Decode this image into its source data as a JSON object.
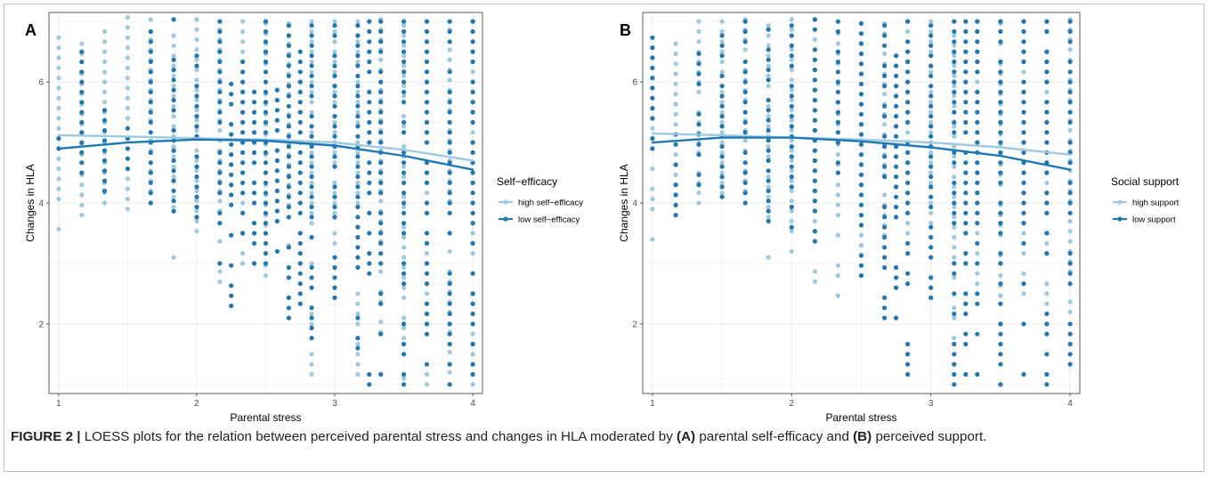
{
  "caption": {
    "label": "FIGURE 2 |",
    "text_1": " LOESS plots for the relation between perceived parental stress and changes in HLA moderated by ",
    "mark_a": "(A)",
    "text_2": " parental self-efficacy and ",
    "mark_b": "(B)",
    "text_3": " perceived support."
  },
  "colors": {
    "high": "#9ecae1",
    "low": "#1f78b4",
    "grid": "#ebebeb",
    "panel_border": "#333333"
  },
  "chart_data": [
    {
      "panel": "A",
      "type": "scatter",
      "xlabel": "Parental stress",
      "ylabel": "Changes in HLA",
      "xlim": [
        0.93,
        4.07
      ],
      "ylim": [
        0.85,
        7.15
      ],
      "x_ticks": [
        "1",
        "2",
        "3",
        "4"
      ],
      "y_ticks": [
        "2",
        "4",
        "6"
      ],
      "grid": true,
      "legend": {
        "title": "Self−efficacy",
        "position": "right"
      },
      "x_levels": [
        1,
        1.167,
        1.333,
        1.5,
        1.667,
        1.833,
        2,
        2.167,
        2.25,
        2.333,
        2.417,
        2.5,
        2.583,
        2.667,
        2.75,
        2.833,
        3,
        3.167,
        3.25,
        3.333,
        3.5,
        3.667,
        3.833,
        4
      ],
      "series": [
        {
          "name": "high self−efficacy",
          "color": "#9ecae1",
          "points_note_x_ranges": "columns of points at each x level",
          "columns": [
            {
              "x": 1,
              "ymin": 3.4,
              "ymax": 6.8
            },
            {
              "x": 1.167,
              "ymin": 3.8,
              "ymax": 6.6
            },
            {
              "x": 1.333,
              "ymin": 4.0,
              "ymax": 7.0
            },
            {
              "x": 1.5,
              "ymin": 3.9,
              "ymax": 7.0
            },
            {
              "x": 1.667,
              "ymin": 4.2,
              "ymax": 7.0
            },
            {
              "x": 1.833,
              "ymin": 3.1,
              "ymax": 7.0
            },
            {
              "x": 2,
              "ymin": 3.2,
              "ymax": 7.0
            },
            {
              "x": 2.167,
              "ymin": 2.7,
              "ymax": 7.0
            },
            {
              "x": 2.333,
              "ymin": 3.0,
              "ymax": 7.0
            },
            {
              "x": 2.5,
              "ymin": 2.8,
              "ymax": 7.0
            },
            {
              "x": 2.667,
              "ymin": 3.3,
              "ymax": 7.0
            },
            {
              "x": 2.833,
              "ymin": 1.0,
              "ymax": 7.0
            },
            {
              "x": 3,
              "ymin": 3.0,
              "ymax": 7.0
            },
            {
              "x": 3.167,
              "ymin": 1.0,
              "ymax": 7.0
            },
            {
              "x": 3.333,
              "ymin": 1.2,
              "ymax": 7.0
            },
            {
              "x": 3.5,
              "ymin": 1.1,
              "ymax": 7.0
            },
            {
              "x": 3.667,
              "ymin": 1.0,
              "ymax": 7.0
            },
            {
              "x": 3.833,
              "ymin": 1.2,
              "ymax": 6.8
            },
            {
              "x": 4,
              "ymin": 1.0,
              "ymax": 7.0
            }
          ],
          "loess": [
            [
              1,
              5.12
            ],
            [
              1.5,
              5.1
            ],
            [
              2,
              5.07
            ],
            [
              2.5,
              5.05
            ],
            [
              3,
              5.0
            ],
            [
              3.5,
              4.88
            ],
            [
              4,
              4.7
            ]
          ]
        },
        {
          "name": "low self−efficacy",
          "color": "#1f78b4",
          "columns": [
            {
              "x": 1,
              "ymin": 4.9,
              "ymax": 5.1
            },
            {
              "x": 1.167,
              "ymin": 4.5,
              "ymax": 6.5
            },
            {
              "x": 1.333,
              "ymin": 4.2,
              "ymax": 5.5
            },
            {
              "x": 1.5,
              "ymin": 4.4,
              "ymax": 5.4
            },
            {
              "x": 1.667,
              "ymin": 4.0,
              "ymax": 7.0
            },
            {
              "x": 1.833,
              "ymin": 3.7,
              "ymax": 7.0
            },
            {
              "x": 2,
              "ymin": 3.6,
              "ymax": 6.5
            },
            {
              "x": 2.167,
              "ymin": 3.0,
              "ymax": 7.0
            },
            {
              "x": 2.25,
              "ymin": 2.3,
              "ymax": 6.0
            },
            {
              "x": 2.333,
              "ymin": 3.5,
              "ymax": 6.5
            },
            {
              "x": 2.417,
              "ymin": 3.0,
              "ymax": 5.8
            },
            {
              "x": 2.5,
              "ymin": 3.0,
              "ymax": 7.0
            },
            {
              "x": 2.583,
              "ymin": 3.2,
              "ymax": 6.0
            },
            {
              "x": 2.667,
              "ymin": 2.1,
              "ymax": 7.0
            },
            {
              "x": 2.75,
              "ymin": 2.0,
              "ymax": 6.5
            },
            {
              "x": 2.833,
              "ymin": 1.6,
              "ymax": 7.0
            },
            {
              "x": 3,
              "ymin": 2.1,
              "ymax": 7.0
            },
            {
              "x": 3.167,
              "ymin": 1.6,
              "ymax": 7.0
            },
            {
              "x": 3.25,
              "ymin": 1.0,
              "ymax": 7.0
            },
            {
              "x": 3.333,
              "ymin": 1.0,
              "ymax": 7.0
            },
            {
              "x": 3.5,
              "ymin": 1.0,
              "ymax": 7.0
            },
            {
              "x": 3.667,
              "ymin": 1.0,
              "ymax": 7.0
            },
            {
              "x": 3.833,
              "ymin": 1.0,
              "ymax": 7.0
            },
            {
              "x": 4,
              "ymin": 1.0,
              "ymax": 7.0
            }
          ],
          "loess": [
            [
              1,
              4.9
            ],
            [
              1.5,
              5.0
            ],
            [
              2,
              5.05
            ],
            [
              2.5,
              5.03
            ],
            [
              3,
              4.95
            ],
            [
              3.5,
              4.78
            ],
            [
              4,
              4.55
            ]
          ]
        }
      ]
    },
    {
      "panel": "B",
      "type": "scatter",
      "xlabel": "Parental stress",
      "ylabel": "Changes in HLA",
      "xlim": [
        0.93,
        4.07
      ],
      "ylim": [
        0.85,
        7.15
      ],
      "x_ticks": [
        "1",
        "2",
        "3",
        "4"
      ],
      "y_ticks": [
        "2",
        "4",
        "6"
      ],
      "grid": true,
      "legend": {
        "title": "Social support",
        "position": "right"
      },
      "series": [
        {
          "name": "high support",
          "color": "#9ecae1",
          "columns": [
            {
              "x": 1,
              "ymin": 3.4,
              "ymax": 6.5
            },
            {
              "x": 1.167,
              "ymin": 3.8,
              "ymax": 6.7
            },
            {
              "x": 1.333,
              "ymin": 4.0,
              "ymax": 7.0
            },
            {
              "x": 1.5,
              "ymin": 4.0,
              "ymax": 7.0
            },
            {
              "x": 1.667,
              "ymin": 4.2,
              "ymax": 7.0
            },
            {
              "x": 1.833,
              "ymin": 3.1,
              "ymax": 7.0
            },
            {
              "x": 2,
              "ymin": 3.2,
              "ymax": 7.0
            },
            {
              "x": 2.167,
              "ymin": 2.7,
              "ymax": 7.0
            },
            {
              "x": 2.333,
              "ymin": 2.3,
              "ymax": 7.0
            },
            {
              "x": 2.5,
              "ymin": 2.8,
              "ymax": 7.0
            },
            {
              "x": 2.667,
              "ymin": 3.3,
              "ymax": 7.0
            },
            {
              "x": 2.833,
              "ymin": 3.0,
              "ymax": 7.0
            },
            {
              "x": 3,
              "ymin": 3.0,
              "ymax": 7.0
            },
            {
              "x": 3.167,
              "ymin": 1.6,
              "ymax": 7.0
            },
            {
              "x": 3.333,
              "ymin": 2.0,
              "ymax": 7.0
            },
            {
              "x": 3.5,
              "ymin": 2.3,
              "ymax": 7.0
            },
            {
              "x": 3.667,
              "ymin": 2.5,
              "ymax": 7.0
            },
            {
              "x": 3.833,
              "ymin": 2.0,
              "ymax": 7.0
            },
            {
              "x": 4,
              "ymin": 2.2,
              "ymax": 7.0
            }
          ],
          "loess": [
            [
              1,
              5.15
            ],
            [
              1.5,
              5.12
            ],
            [
              2,
              5.08
            ],
            [
              2.5,
              5.05
            ],
            [
              3,
              5.0
            ],
            [
              3.5,
              4.92
            ],
            [
              4,
              4.8
            ]
          ]
        },
        {
          "name": "low support",
          "color": "#1f78b4",
          "columns": [
            {
              "x": 1,
              "ymin": 4.9,
              "ymax": 6.8
            },
            {
              "x": 1.167,
              "ymin": 3.8,
              "ymax": 5.1
            },
            {
              "x": 1.333,
              "ymin": 4.3,
              "ymax": 6.4
            },
            {
              "x": 1.5,
              "ymin": 4.1,
              "ymax": 6.7
            },
            {
              "x": 1.667,
              "ymin": 4.0,
              "ymax": 7.0
            },
            {
              "x": 1.833,
              "ymin": 3.7,
              "ymax": 7.0
            },
            {
              "x": 2,
              "ymin": 3.6,
              "ymax": 7.0
            },
            {
              "x": 2.167,
              "ymin": 3.2,
              "ymax": 7.0
            },
            {
              "x": 2.333,
              "ymin": 4.5,
              "ymax": 7.0
            },
            {
              "x": 2.5,
              "ymin": 2.8,
              "ymax": 7.0
            },
            {
              "x": 2.667,
              "ymin": 2.1,
              "ymax": 6.9
            },
            {
              "x": 2.75,
              "ymin": 2.1,
              "ymax": 6.5
            },
            {
              "x": 2.833,
              "ymin": 1.0,
              "ymax": 7.0
            },
            {
              "x": 3,
              "ymin": 2.1,
              "ymax": 7.0
            },
            {
              "x": 3.167,
              "ymin": 1.0,
              "ymax": 7.0
            },
            {
              "x": 3.25,
              "ymin": 1.0,
              "ymax": 7.0
            },
            {
              "x": 3.333,
              "ymin": 1.0,
              "ymax": 7.0
            },
            {
              "x": 3.5,
              "ymin": 1.0,
              "ymax": 7.0
            },
            {
              "x": 3.667,
              "ymin": 1.0,
              "ymax": 7.0
            },
            {
              "x": 3.833,
              "ymin": 1.0,
              "ymax": 7.0
            },
            {
              "x": 4,
              "ymin": 1.0,
              "ymax": 7.0
            }
          ],
          "loess": [
            [
              1,
              5.0
            ],
            [
              1.5,
              5.08
            ],
            [
              2,
              5.08
            ],
            [
              2.5,
              5.02
            ],
            [
              3,
              4.92
            ],
            [
              3.5,
              4.78
            ],
            [
              4,
              4.55
            ]
          ]
        }
      ]
    }
  ]
}
